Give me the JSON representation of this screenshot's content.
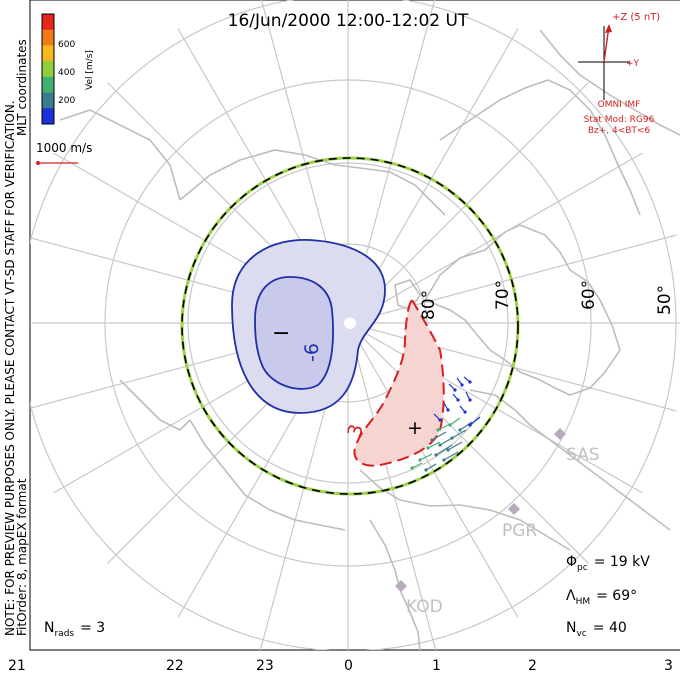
{
  "title": "16/Jun/2000 12:00-12:02 UT",
  "side_note_line1": "NOTE: FOR PREVIEW PURPOSES ONLY. PLEASE CONTACT VT-SD STAFF FOR VERIFICATION.",
  "side_note_line2": "FitOrder: 8, mapEX format",
  "coord_label": "MLT coordinates",
  "colorbar": {
    "unit_label": "Vel [m/s]",
    "ticks": [
      "600",
      "400",
      "200"
    ],
    "colors": [
      "#e8251a",
      "#f07a1a",
      "#f6b81e",
      "#8fcf3a",
      "#3fb070",
      "#3c7c8a",
      "#1a2fd8"
    ]
  },
  "velocity_scale_label": "1000 m/s",
  "imf": {
    "z_label": "+Z (5 nT)",
    "y_label": "+Y",
    "source": "OMNI IMF",
    "model": "Stat Mod: RG96",
    "condition": "Bz+, 4<BT<6"
  },
  "latitude_labels": [
    "80°",
    "70°",
    "60°",
    "50°"
  ],
  "contours": {
    "negative_cell_sign": "−",
    "negative_cell_value": "-6",
    "positive_cell_sign": "+",
    "positive_cell_value": "3"
  },
  "stations": [
    "SAS",
    "PGR",
    "KOD"
  ],
  "stats": {
    "phi_pc_symbol": "Φ",
    "phi_pc_sub": "pc",
    "phi_pc_value": "= 19 kV",
    "lambda_hm_symbol": "Λ",
    "lambda_hm_sub": "HM",
    "lambda_hm_value": "= 69°",
    "n_vc_symbol": "N",
    "n_vc_sub": "vc",
    "n_vc_value": "= 40",
    "n_rads_symbol": "N",
    "n_rads_sub": "rads",
    "n_rads_value": "= 3"
  },
  "mlt_axis": [
    "21",
    "22",
    "23",
    "0",
    "1",
    "2",
    "3"
  ],
  "colors": {
    "grid": "#c8c8c8",
    "coast": "#c0c0c0",
    "negative_contour": "#1f2fa8",
    "negative_fill": "#d9daf0",
    "positive_contour": "#d42020",
    "positive_fill": "#f5d2cf",
    "boundary_green": "#9ed04a",
    "station": "#b9a8c0"
  }
}
